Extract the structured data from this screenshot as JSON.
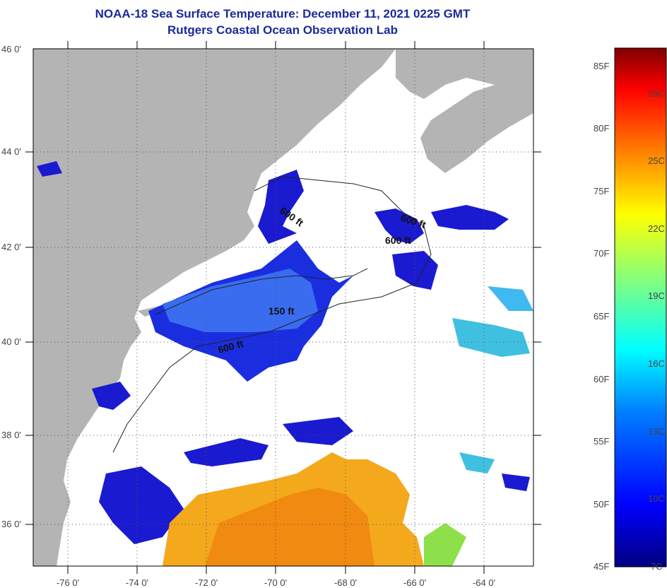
{
  "title": {
    "line1": "NOAA-18 Sea Surface Temperature:  December 11, 2021 0225 GMT",
    "line2": "Rutgers Coastal Ocean Observation Lab"
  },
  "axes": {
    "x_ticks": [
      "-76 0'",
      "-74 0'",
      "-72 0'",
      "-70 0'",
      "-68 0'",
      "-66 0'",
      "-64 0'"
    ],
    "y_ticks": [
      "46 0'",
      "44 0'",
      "42 0'",
      "40 0'",
      "38 0'",
      "36 0'"
    ]
  },
  "contour_labels": [
    "600 ft",
    "600 ft",
    "600 ft",
    "150 ft",
    "600 ft"
  ],
  "colorbar": {
    "fahrenheit": [
      "85F",
      "80F",
      "75F",
      "70F",
      "65F",
      "60F",
      "55F",
      "50F",
      "45F"
    ],
    "celsius": [
      "28C",
      "25C",
      "22C",
      "19C",
      "16C",
      "13C",
      "10C",
      "7C"
    ]
  },
  "colors": {
    "land": "#b4b4b4",
    "water_nodata": "#ffffff",
    "cold": "#1a1ad0",
    "mid": "#3a6cf0",
    "warm": "#f4a81c",
    "title": "#1a2a9a"
  }
}
